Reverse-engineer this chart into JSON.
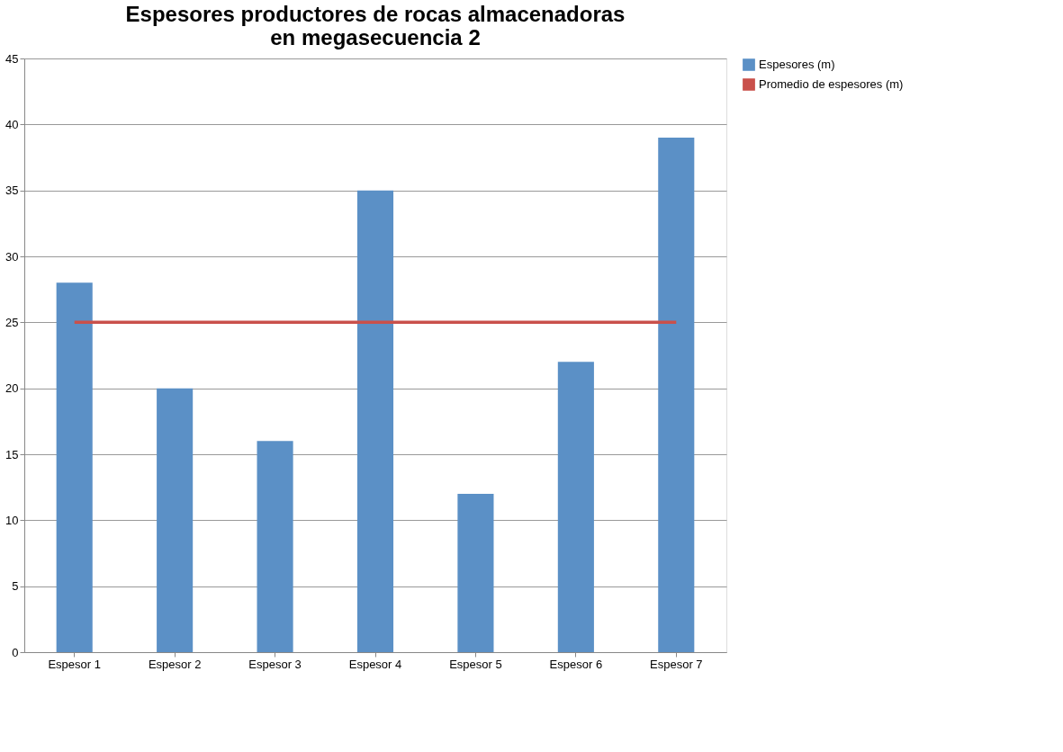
{
  "chart_data": {
    "type": "bar",
    "title": "Espesores productores de rocas almacenadoras\nen megasecuencia 2",
    "categories": [
      "Espesor 1",
      "Espesor 2",
      "Espesor 3",
      "Espesor 4",
      "Espesor 5",
      "Espesor 6",
      "Espesor 7"
    ],
    "series": [
      {
        "name": "Espesores (m)",
        "color": "#5b90c6",
        "values": [
          28,
          20,
          16,
          35,
          12,
          22,
          39
        ]
      },
      {
        "name": "Promedio de espesores (m)",
        "type": "line",
        "color": "#c9504b",
        "values": [
          25,
          25,
          25,
          25,
          25,
          25,
          25
        ]
      }
    ],
    "ylim": [
      0,
      45
    ],
    "yticks": [
      0,
      5,
      10,
      15,
      20,
      25,
      30,
      35,
      40,
      45
    ],
    "grid": "y",
    "legend": "right"
  }
}
